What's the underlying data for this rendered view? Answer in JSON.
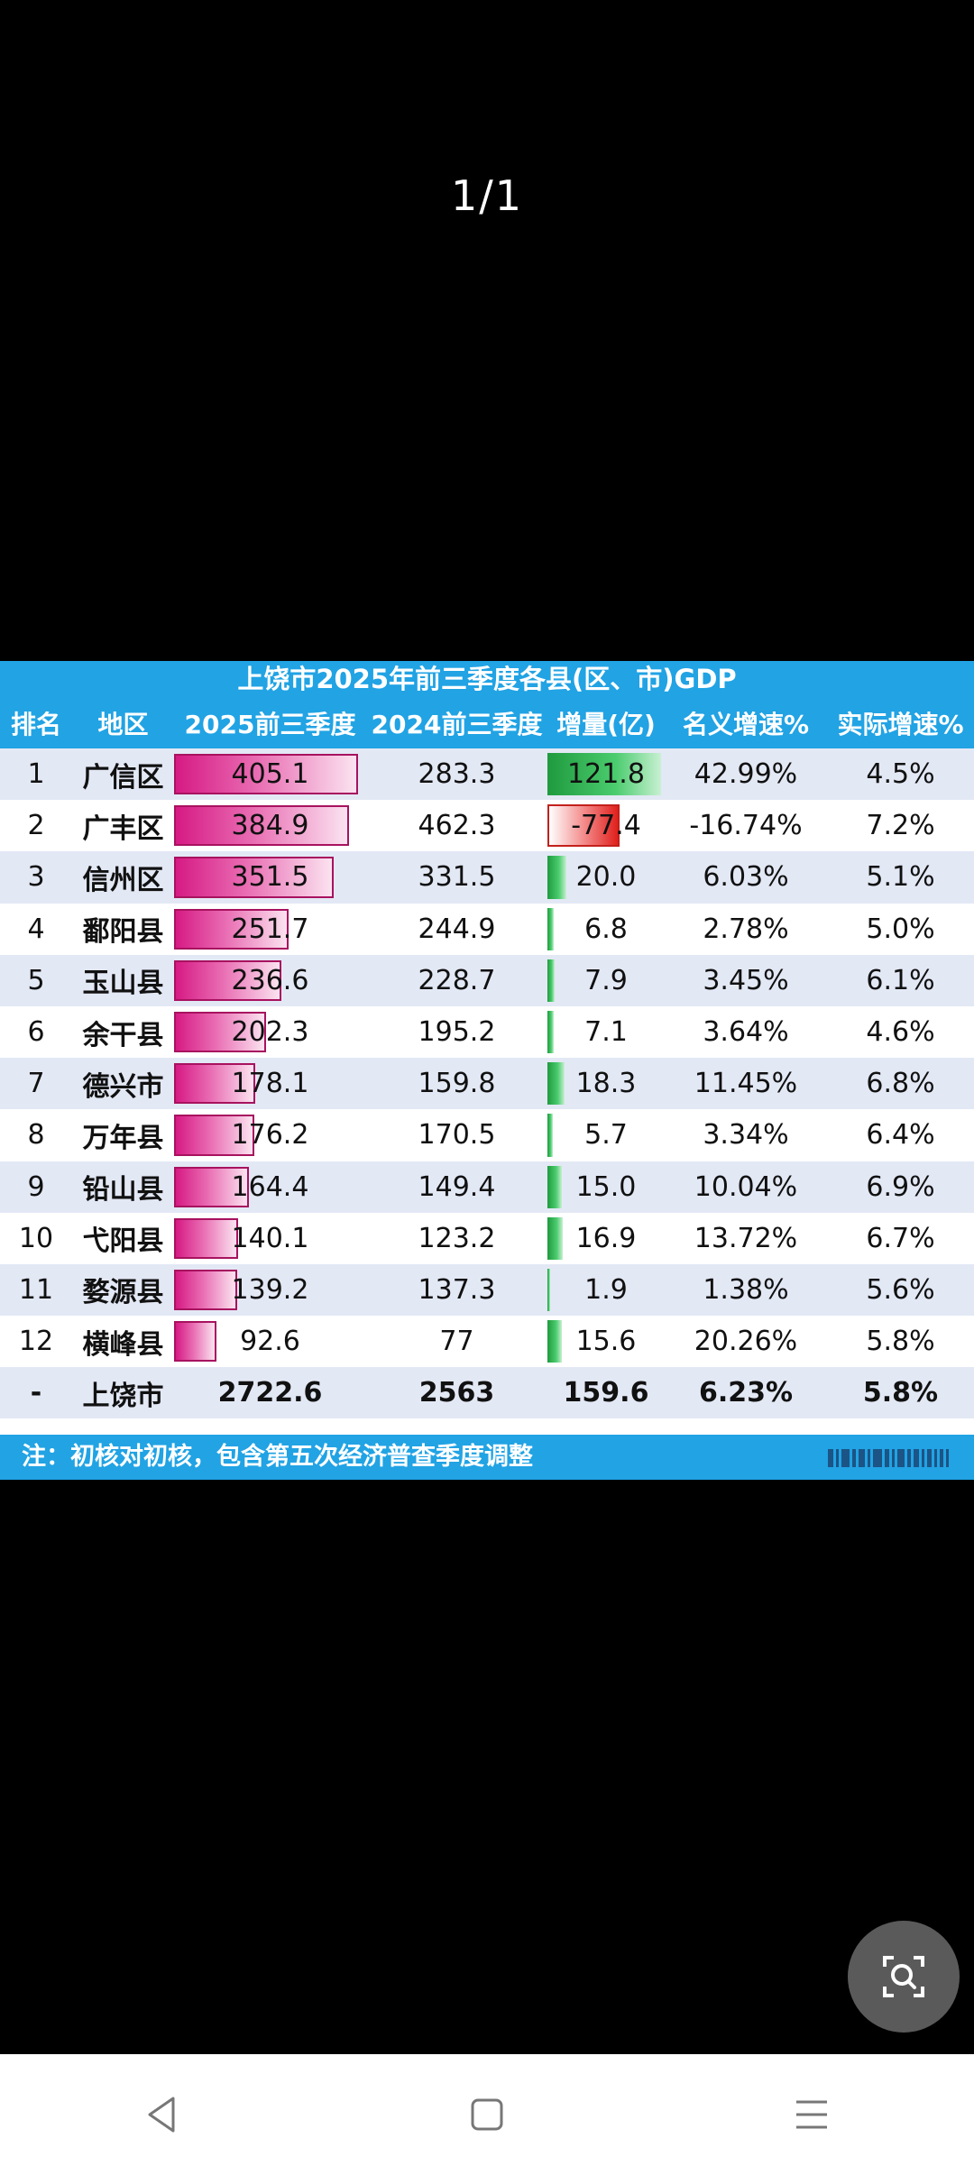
{
  "viewer": {
    "page_counter": "1/1"
  },
  "table": {
    "title": "上饶市2025年前三季度各县(区、市)GDP",
    "headers": [
      "排名",
      "地区",
      "2025前三季度",
      "2024前三季度",
      "增量(亿)",
      "名义增速%",
      "实际增速%"
    ],
    "rows": [
      {
        "rank": "1",
        "region": "广信区",
        "v2025": "405.1",
        "v2024": "283.3",
        "inc": "121.8",
        "nominal": "42.99%",
        "real": "4.5%"
      },
      {
        "rank": "2",
        "region": "广丰区",
        "v2025": "384.9",
        "v2024": "462.3",
        "inc": "-77.4",
        "nominal": "-16.74%",
        "real": "7.2%"
      },
      {
        "rank": "3",
        "region": "信州区",
        "v2025": "351.5",
        "v2024": "331.5",
        "inc": "20.0",
        "nominal": "6.03%",
        "real": "5.1%"
      },
      {
        "rank": "4",
        "region": "鄱阳县",
        "v2025": "251.7",
        "v2024": "244.9",
        "inc": "6.8",
        "nominal": "2.78%",
        "real": "5.0%"
      },
      {
        "rank": "5",
        "region": "玉山县",
        "v2025": "236.6",
        "v2024": "228.7",
        "inc": "7.9",
        "nominal": "3.45%",
        "real": "6.1%"
      },
      {
        "rank": "6",
        "region": "余干县",
        "v2025": "202.3",
        "v2024": "195.2",
        "inc": "7.1",
        "nominal": "3.64%",
        "real": "4.6%"
      },
      {
        "rank": "7",
        "region": "德兴市",
        "v2025": "178.1",
        "v2024": "159.8",
        "inc": "18.3",
        "nominal": "11.45%",
        "real": "6.8%"
      },
      {
        "rank": "8",
        "region": "万年县",
        "v2025": "176.2",
        "v2024": "170.5",
        "inc": "5.7",
        "nominal": "3.34%",
        "real": "6.4%"
      },
      {
        "rank": "9",
        "region": "铅山县",
        "v2025": "164.4",
        "v2024": "149.4",
        "inc": "15.0",
        "nominal": "10.04%",
        "real": "6.9%"
      },
      {
        "rank": "10",
        "region": "弋阳县",
        "v2025": "140.1",
        "v2024": "123.2",
        "inc": "16.9",
        "nominal": "13.72%",
        "real": "6.7%"
      },
      {
        "rank": "11",
        "region": "婺源县",
        "v2025": "139.2",
        "v2024": "137.3",
        "inc": "1.9",
        "nominal": "1.38%",
        "real": "5.6%"
      },
      {
        "rank": "12",
        "region": "横峰县",
        "v2025": "92.6",
        "v2024": "77",
        "inc": "15.6",
        "nominal": "20.26%",
        "real": "5.8%"
      }
    ],
    "total": {
      "rank": "-",
      "region": "上饶市",
      "v2025": "2722.6",
      "v2024": "2563",
      "inc": "159.6",
      "nominal": "6.23%",
      "real": "5.8%"
    },
    "footer_note": "注：初核对初核，包含第五次经济普查季度调整",
    "colors": {
      "header": "#21a3e4",
      "bar_2025": "#d61a84",
      "inc_positive": "#1f9a3e",
      "inc_negative": "#e0201c",
      "alt_row": "#e3e8f5"
    }
  },
  "controls": {
    "lens_icon": "image-search-icon",
    "nav": [
      "back-icon",
      "home-icon",
      "menu-icon"
    ]
  }
}
